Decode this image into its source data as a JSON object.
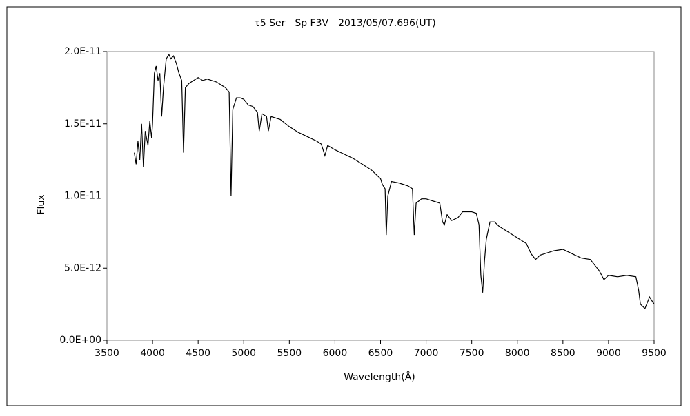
{
  "chart_data": {
    "type": "line",
    "title": "τ5 Ser　Sp F3V　2013/05/07.696(UT)",
    "x_label": "Wavelength(Å)",
    "y_label": "Flux",
    "color": "#000000",
    "x": [
      3800,
      3820,
      3840,
      3860,
      3880,
      3900,
      3920,
      3950,
      3970,
      3990,
      4000,
      4020,
      4040,
      4060,
      4080,
      4100,
      4120,
      4150,
      4180,
      4200,
      4230,
      4260,
      4290,
      4320,
      4340,
      4360,
      4400,
      4450,
      4500,
      4550,
      4600,
      4650,
      4700,
      4750,
      4800,
      4840,
      4861,
      4880,
      4920,
      4960,
      5000,
      5050,
      5100,
      5150,
      5170,
      5200,
      5250,
      5270,
      5300,
      5400,
      5500,
      5600,
      5700,
      5800,
      5850,
      5890,
      5920,
      6000,
      6100,
      6200,
      6300,
      6400,
      6500,
      6520,
      6550,
      6563,
      6580,
      6620,
      6700,
      6800,
      6850,
      6870,
      6890,
      6950,
      7000,
      7100,
      7150,
      7180,
      7200,
      7230,
      7280,
      7350,
      7400,
      7500,
      7550,
      7580,
      7600,
      7620,
      7640,
      7660,
      7700,
      7750,
      7800,
      7900,
      8000,
      8100,
      8150,
      8200,
      8250,
      8300,
      8400,
      8500,
      8600,
      8700,
      8800,
      8850,
      8900,
      8950,
      9000,
      9100,
      9200,
      9300,
      9330,
      9350,
      9400,
      9450,
      9500
    ],
    "values": [
      1.3e-11,
      1.22e-11,
      1.38e-11,
      1.25e-11,
      1.5e-11,
      1.2e-11,
      1.45e-11,
      1.35e-11,
      1.52e-11,
      1.4e-11,
      1.5e-11,
      1.85e-11,
      1.9e-11,
      1.8e-11,
      1.85e-11,
      1.55e-11,
      1.75e-11,
      1.95e-11,
      1.98e-11,
      1.95e-11,
      1.97e-11,
      1.92e-11,
      1.85e-11,
      1.8e-11,
      1.3e-11,
      1.75e-11,
      1.78e-11,
      1.8e-11,
      1.82e-11,
      1.8e-11,
      1.81e-11,
      1.8e-11,
      1.79e-11,
      1.77e-11,
      1.75e-11,
      1.72e-11,
      1e-11,
      1.6e-11,
      1.68e-11,
      1.68e-11,
      1.67e-11,
      1.63e-11,
      1.62e-11,
      1.58e-11,
      1.45e-11,
      1.57e-11,
      1.55e-11,
      1.45e-11,
      1.55e-11,
      1.53e-11,
      1.48e-11,
      1.44e-11,
      1.41e-11,
      1.38e-11,
      1.36e-11,
      1.28e-11,
      1.35e-11,
      1.32e-11,
      1.29e-11,
      1.26e-11,
      1.22e-11,
      1.18e-11,
      1.12e-11,
      1.08e-11,
      1.05e-11,
      7.3e-12,
      1e-11,
      1.1e-11,
      1.09e-11,
      1.07e-11,
      1.05e-11,
      7.3e-12,
      9.5e-12,
      9.8e-12,
      9.8e-12,
      9.6e-12,
      9.5e-12,
      8.2e-12,
      8e-12,
      8.7e-12,
      8.3e-12,
      8.5e-12,
      8.9e-12,
      8.9e-12,
      8.8e-12,
      8e-12,
      4.5e-12,
      3.3e-12,
      5.5e-12,
      7e-12,
      8.2e-12,
      8.2e-12,
      7.9e-12,
      7.5e-12,
      7.1e-12,
      6.7e-12,
      6e-12,
      5.6e-12,
      5.9e-12,
      6e-12,
      6.2e-12,
      6.3e-12,
      6e-12,
      5.7e-12,
      5.6e-12,
      5.2e-12,
      4.8e-12,
      4.2e-12,
      4.5e-12,
      4.4e-12,
      4.5e-12,
      4.4e-12,
      3.5e-12,
      2.5e-12,
      2.2e-12,
      3e-12,
      2.5e-12
    ],
    "xlim": [
      3500,
      9500
    ],
    "xticks": [
      3500,
      4000,
      4500,
      5000,
      5500,
      6000,
      6500,
      7000,
      7500,
      8000,
      8500,
      9000,
      9500
    ],
    "ylim": [
      0,
      2e-11
    ],
    "yticks": [
      {
        "value": 0,
        "label": "0.0E+00"
      },
      {
        "value": 5e-12,
        "label": "5.0E-12"
      },
      {
        "value": 1e-11,
        "label": "1.0E-11"
      },
      {
        "value": 1.5e-11,
        "label": "1.5E-11"
      },
      {
        "value": 2e-11,
        "label": "2.0E-11"
      }
    ]
  }
}
